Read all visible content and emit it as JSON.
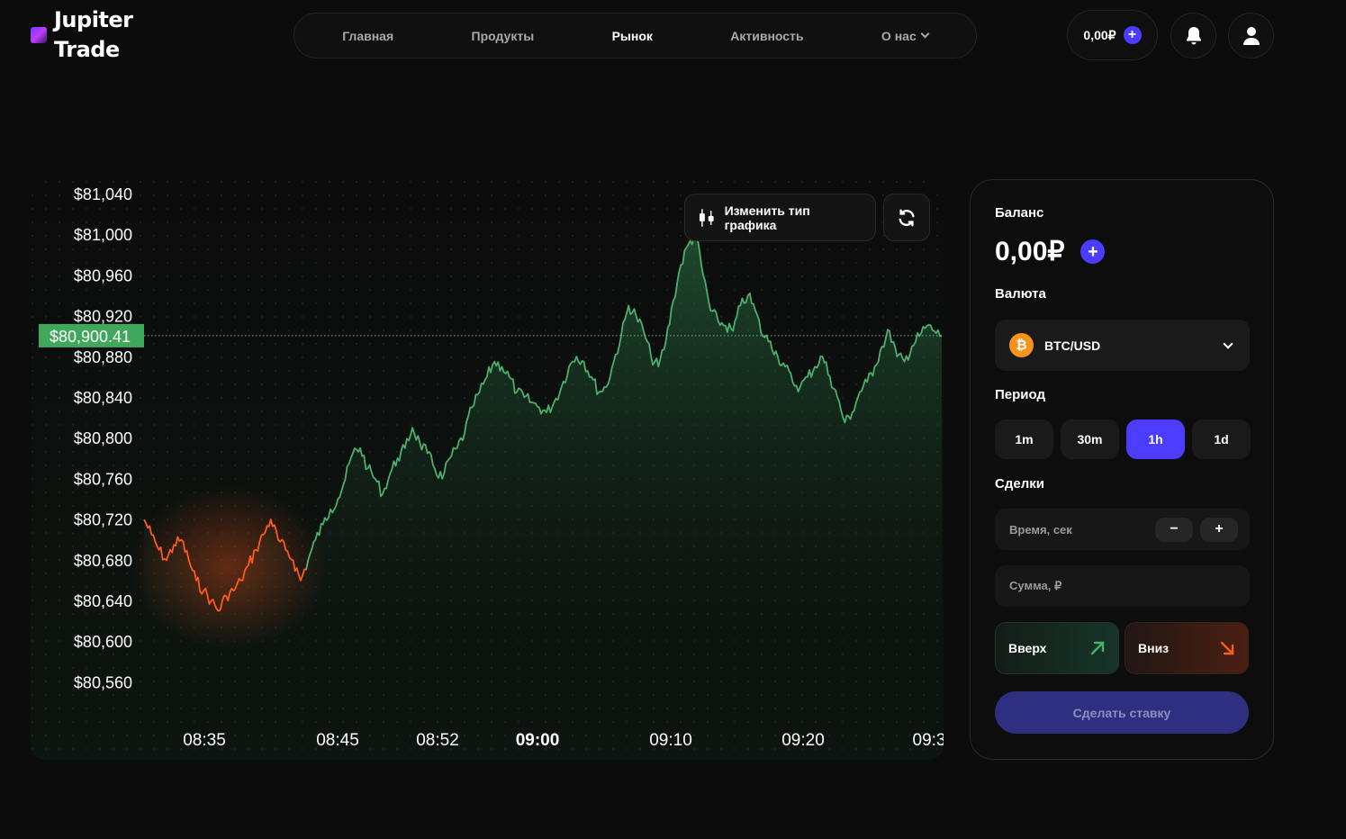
{
  "brand": {
    "line1": "Jupiter",
    "line2": "Trade"
  },
  "nav": {
    "items": [
      {
        "label": "Главная",
        "active": false
      },
      {
        "label": "Продукты",
        "active": false
      },
      {
        "label": "Рынок",
        "active": true
      },
      {
        "label": "Активность",
        "active": false
      },
      {
        "label": "О нас",
        "active": false,
        "dropdown": true
      }
    ]
  },
  "header": {
    "balance": "0,00₽",
    "icons": [
      "plus-icon",
      "bell-icon",
      "user-icon"
    ]
  },
  "chart_toolbar": {
    "change_type_label": "Изменить тип графика",
    "refresh_icon": "refresh-icon",
    "candle_icon": "candlestick-icon"
  },
  "panel": {
    "balance_label": "Баланс",
    "balance_value": "0,00₽",
    "currency_label": "Валюта",
    "currency_value": "BTC/USD",
    "currency_icon": "bitcoin-icon",
    "period_label": "Период",
    "periods": [
      "1m",
      "30m",
      "1h",
      "1d"
    ],
    "period_selected": "1h",
    "deals_label": "Сделки",
    "time_placeholder": "Время, сек",
    "amount_placeholder": "Сумма, ₽",
    "up_label": "Вверх",
    "down_label": "Вниз",
    "bet_label": "Сделать ставку"
  },
  "colors": {
    "accent": "#4b3cff",
    "up": "#4caf6a",
    "down": "#ff5a1f",
    "bitcoin": "#f7931a"
  },
  "chart_data": {
    "type": "line",
    "y_ticks": [
      "$81,040",
      "$81,000",
      "$80,960",
      "$80,920",
      "$80,880",
      "$80,840",
      "$80,800",
      "$80,760",
      "$80,720",
      "$80,680",
      "$80,640",
      "$80,600",
      "$80,560"
    ],
    "x_ticks": [
      {
        "label": "08:35",
        "bold": false
      },
      {
        "label": "08:45",
        "bold": false
      },
      {
        "label": "08:52",
        "bold": false
      },
      {
        "label": "09:00",
        "bold": true
      },
      {
        "label": "09:10",
        "bold": false
      },
      {
        "label": "09:20",
        "bold": false
      },
      {
        "label": "09:3",
        "bold": false
      }
    ],
    "current_price_label": "$80,900.41",
    "current_price": 80900.41,
    "ylim": [
      80560,
      81040
    ],
    "series": [
      {
        "values": [
          80720,
          80705,
          80690,
          80680,
          80695,
          80700,
          80680,
          80660,
          80650,
          80640,
          80630,
          80645,
          80650,
          80660,
          80675,
          80690,
          80705,
          80720,
          80700,
          80690,
          80680,
          80660,
          80680,
          80700,
          80715,
          80730,
          80740,
          80760,
          80785,
          80790,
          80770,
          80760,
          80745,
          80765,
          80780,
          80790,
          80810,
          80795,
          80785,
          80770,
          80760,
          80780,
          80790,
          80805,
          80830,
          80845,
          80860,
          80875,
          80870,
          80860,
          80845,
          80840,
          80835,
          80830,
          80825,
          80835,
          80850,
          80870,
          80880,
          80875,
          80860,
          80845,
          80850,
          80875,
          80900,
          80930,
          80920,
          80905,
          80880,
          80870,
          80895,
          80935,
          80970,
          80990,
          81000,
          80960,
          80925,
          80915,
          80910,
          80905,
          80930,
          80940,
          80925,
          80900,
          80895,
          80880,
          80870,
          80855,
          80850,
          80860,
          80870,
          80880,
          80860,
          80840,
          80815,
          80825,
          80845,
          80855,
          80870,
          80890,
          80905,
          80880,
          80875,
          80890,
          80900,
          80910,
          80905,
          80900
        ]
      }
    ]
  }
}
